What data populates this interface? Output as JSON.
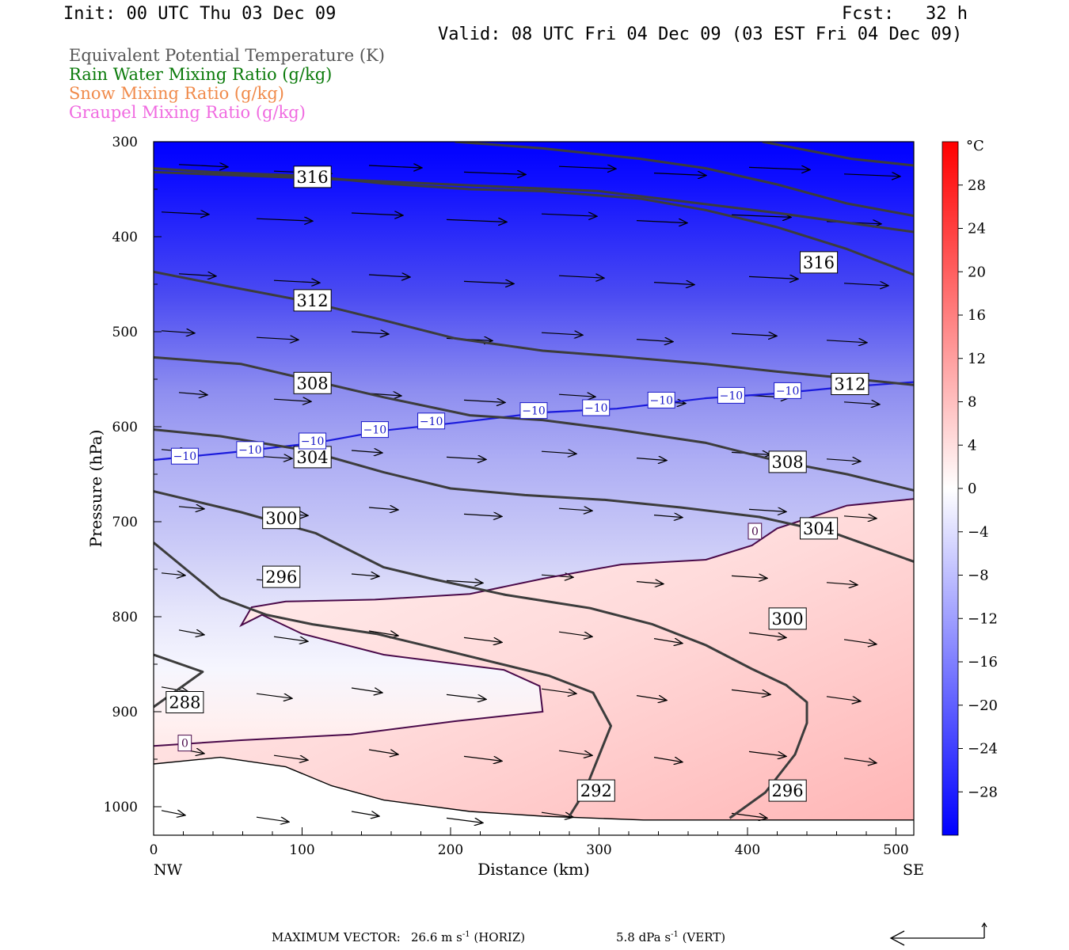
{
  "header": {
    "init": "Init: 00 UTC Thu 03 Dec 09",
    "fcst": "Fcst:   32 h",
    "valid": "Valid: 08 UTC Fri 04 Dec 09 (03 EST Fri 04 Dec 09)"
  },
  "legend": [
    {
      "label": "Equivalent Potential Temperature (K)",
      "color": "#555555"
    },
    {
      "label": "Rain Water Mixing Ratio (g/kg)",
      "color": "#0a7a0a"
    },
    {
      "label": "Snow Mixing Ratio (g/kg)",
      "color": "#f08a4a"
    },
    {
      "label": "Graupel Mixing Ratio (g/kg)",
      "color": "#f06ae0"
    }
  ],
  "colorbar": {
    "unit": "°C",
    "labels": [
      "28",
      "24",
      "20",
      "16",
      "12",
      "8",
      "4",
      "0",
      "−4",
      "−8",
      "−12",
      "−16",
      "−20",
      "−24",
      "−28"
    ]
  },
  "footer": {
    "max_vector_label": "MAXIMUM VECTOR:",
    "horiz_value": "26.6 m s",
    "horiz_exp": "-1",
    "horiz_unit": " (HORIZ)",
    "vert_value": "5.8 dPa s",
    "vert_exp": "-1",
    "vert_unit": " (VERT)"
  },
  "chart_data": {
    "type": "cross-section",
    "xlabel": "Distance (km)",
    "ylabel": "Pressure (hPa)",
    "xlim": [
      0,
      512
    ],
    "ylim": [
      1030,
      300
    ],
    "y_log_scale": false,
    "x_ticks": [
      0,
      100,
      200,
      300,
      400,
      500
    ],
    "y_ticks": [
      300,
      400,
      500,
      600,
      700,
      800,
      900,
      1000
    ],
    "x_end_labels": {
      "left": "NW",
      "right": "SE"
    },
    "fill_variable": "Temperature (°C)",
    "fill_colors": {
      "cold": "#0000ff",
      "zero": "#ffffff",
      "warm": "#ff0000"
    },
    "theta_e_contours_K": [
      {
        "value": 288,
        "points": [
          [
            0,
            895
          ],
          [
            33,
            858
          ],
          [
            0,
            840
          ]
        ]
      },
      {
        "value": 292,
        "points": [
          [
            280,
            1010
          ],
          [
            290,
            985
          ],
          [
            308,
            915
          ],
          [
            296,
            880
          ],
          [
            266,
            862
          ],
          [
            203,
            838
          ],
          [
            150,
            818
          ],
          [
            107,
            808
          ],
          [
            76,
            798
          ],
          [
            45,
            780
          ],
          [
            0,
            722
          ]
        ]
      },
      {
        "value": 296,
        "points": [
          [
            0,
            668
          ],
          [
            59,
            690
          ],
          [
            109,
            712
          ],
          [
            155,
            748
          ],
          [
            187,
            760
          ],
          [
            237,
            777
          ],
          [
            294,
            791
          ],
          [
            336,
            808
          ],
          [
            372,
            830
          ],
          [
            403,
            855
          ],
          [
            426,
            872
          ],
          [
            440,
            890
          ],
          [
            440,
            912
          ],
          [
            432,
            945
          ],
          [
            412,
            985
          ],
          [
            388,
            1012
          ]
        ]
      },
      {
        "value": 300,
        "points": [
          [
            0,
            603
          ],
          [
            45,
            610
          ],
          [
            103,
            625
          ],
          [
            155,
            648
          ],
          [
            200,
            665
          ],
          [
            250,
            672
          ],
          [
            304,
            677
          ],
          [
            355,
            685
          ],
          [
            408,
            695
          ],
          [
            460,
            713
          ],
          [
            512,
            742
          ]
        ]
      },
      {
        "value": 304,
        "points": [
          [
            0,
            527
          ],
          [
            59,
            534
          ],
          [
            103,
            550
          ],
          [
            155,
            569
          ],
          [
            213,
            588
          ],
          [
            262,
            593
          ],
          [
            312,
            603
          ],
          [
            372,
            617
          ],
          [
            420,
            636
          ],
          [
            467,
            650
          ],
          [
            512,
            667
          ]
        ]
      },
      {
        "value": 308,
        "points": [
          [
            0,
            437
          ],
          [
            49,
            452
          ],
          [
            103,
            468
          ],
          [
            155,
            488
          ],
          [
            203,
            507
          ],
          [
            262,
            520
          ],
          [
            312,
            526
          ],
          [
            372,
            534
          ],
          [
            420,
            542
          ],
          [
            467,
            549
          ],
          [
            512,
            556
          ]
        ]
      },
      {
        "value": 312,
        "points": [
          [
            0,
            328
          ],
          [
            39,
            332
          ],
          [
            103,
            336
          ],
          [
            155,
            344
          ],
          [
            213,
            350
          ],
          [
            262,
            352
          ],
          [
            328,
            360
          ],
          [
            372,
            372
          ],
          [
            420,
            390
          ],
          [
            467,
            413
          ],
          [
            512,
            440
          ]
        ]
      },
      {
        "value": 316,
        "points": [
          [
            203,
            300
          ],
          [
            262,
            307
          ],
          [
            328,
            318
          ],
          [
            372,
            328
          ],
          [
            420,
            345
          ],
          [
            467,
            365
          ],
          [
            512,
            378
          ]
        ]
      }
    ],
    "temperature_contours_C": [
      {
        "value": 0,
        "points": [
          [
            0,
            936
          ],
          [
            59,
            930
          ],
          [
            133,
            924
          ],
          [
            203,
            910
          ],
          [
            262,
            900
          ],
          [
            260,
            873
          ],
          [
            236,
            856
          ],
          [
            155,
            840
          ],
          [
            100,
            818
          ],
          [
            73,
            798
          ],
          [
            59,
            809
          ],
          [
            66,
            790
          ],
          [
            89,
            784
          ],
          [
            149,
            782
          ],
          [
            213,
            776
          ],
          [
            262,
            760
          ],
          [
            315,
            745
          ],
          [
            372,
            740
          ],
          [
            403,
            725
          ],
          [
            420,
            707
          ],
          [
            467,
            683
          ],
          [
            512,
            676
          ]
        ]
      },
      {
        "value": -10,
        "points": [
          [
            0,
            635
          ],
          [
            53,
            627
          ],
          [
            109,
            617
          ],
          [
            155,
            604
          ],
          [
            203,
            596
          ],
          [
            262,
            585
          ],
          [
            312,
            581
          ],
          [
            372,
            570
          ],
          [
            420,
            565
          ],
          [
            467,
            558
          ],
          [
            512,
            553
          ]
        ]
      }
    ],
    "wind_vector_max": {
      "horizontal": "26.6 m s-1",
      "vertical": "5.8 dPa s-1"
    }
  }
}
